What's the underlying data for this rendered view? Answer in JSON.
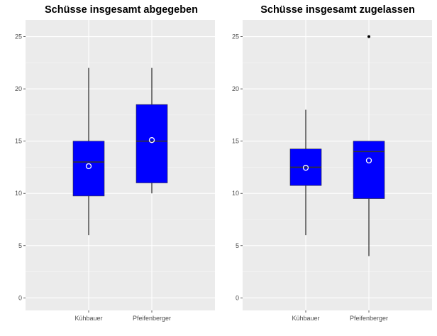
{
  "chart_data": [
    {
      "type": "boxplot",
      "title": "Schüsse insgesamt abgegeben",
      "categories": [
        "Kühbauer",
        "Pfeifenberger"
      ],
      "ylim": [
        -1.2,
        26.6
      ],
      "yticks": [
        0,
        5,
        10,
        15,
        20,
        25
      ],
      "boxes": [
        {
          "name": "Kühbauer",
          "min": 6,
          "q1": 9.75,
          "median": 13,
          "q3": 15,
          "max": 22,
          "mean": 12.6,
          "outliers": []
        },
        {
          "name": "Pfeifenberger",
          "min": 10,
          "q1": 11,
          "median": 15,
          "q3": 18.5,
          "max": 22,
          "mean": 15.1,
          "outliers": []
        }
      ],
      "box_color": "#0000ff"
    },
    {
      "type": "boxplot",
      "title": "Schüsse insgesamt zugelassen",
      "categories": [
        "Kühbauer",
        "Pfeifenberger"
      ],
      "ylim": [
        -1.2,
        26.6
      ],
      "yticks": [
        0,
        5,
        10,
        15,
        20,
        25
      ],
      "boxes": [
        {
          "name": "Kühbauer",
          "min": 6,
          "q1": 10.75,
          "median": 12.5,
          "q3": 14.25,
          "max": 18,
          "mean": 12.45,
          "outliers": []
        },
        {
          "name": "Pfeifenberger",
          "min": 4,
          "q1": 9.5,
          "median": 14,
          "q3": 15,
          "max": 15,
          "mean": 13.15,
          "outliers": [
            25
          ]
        }
      ],
      "box_color": "#0000ff"
    }
  ]
}
